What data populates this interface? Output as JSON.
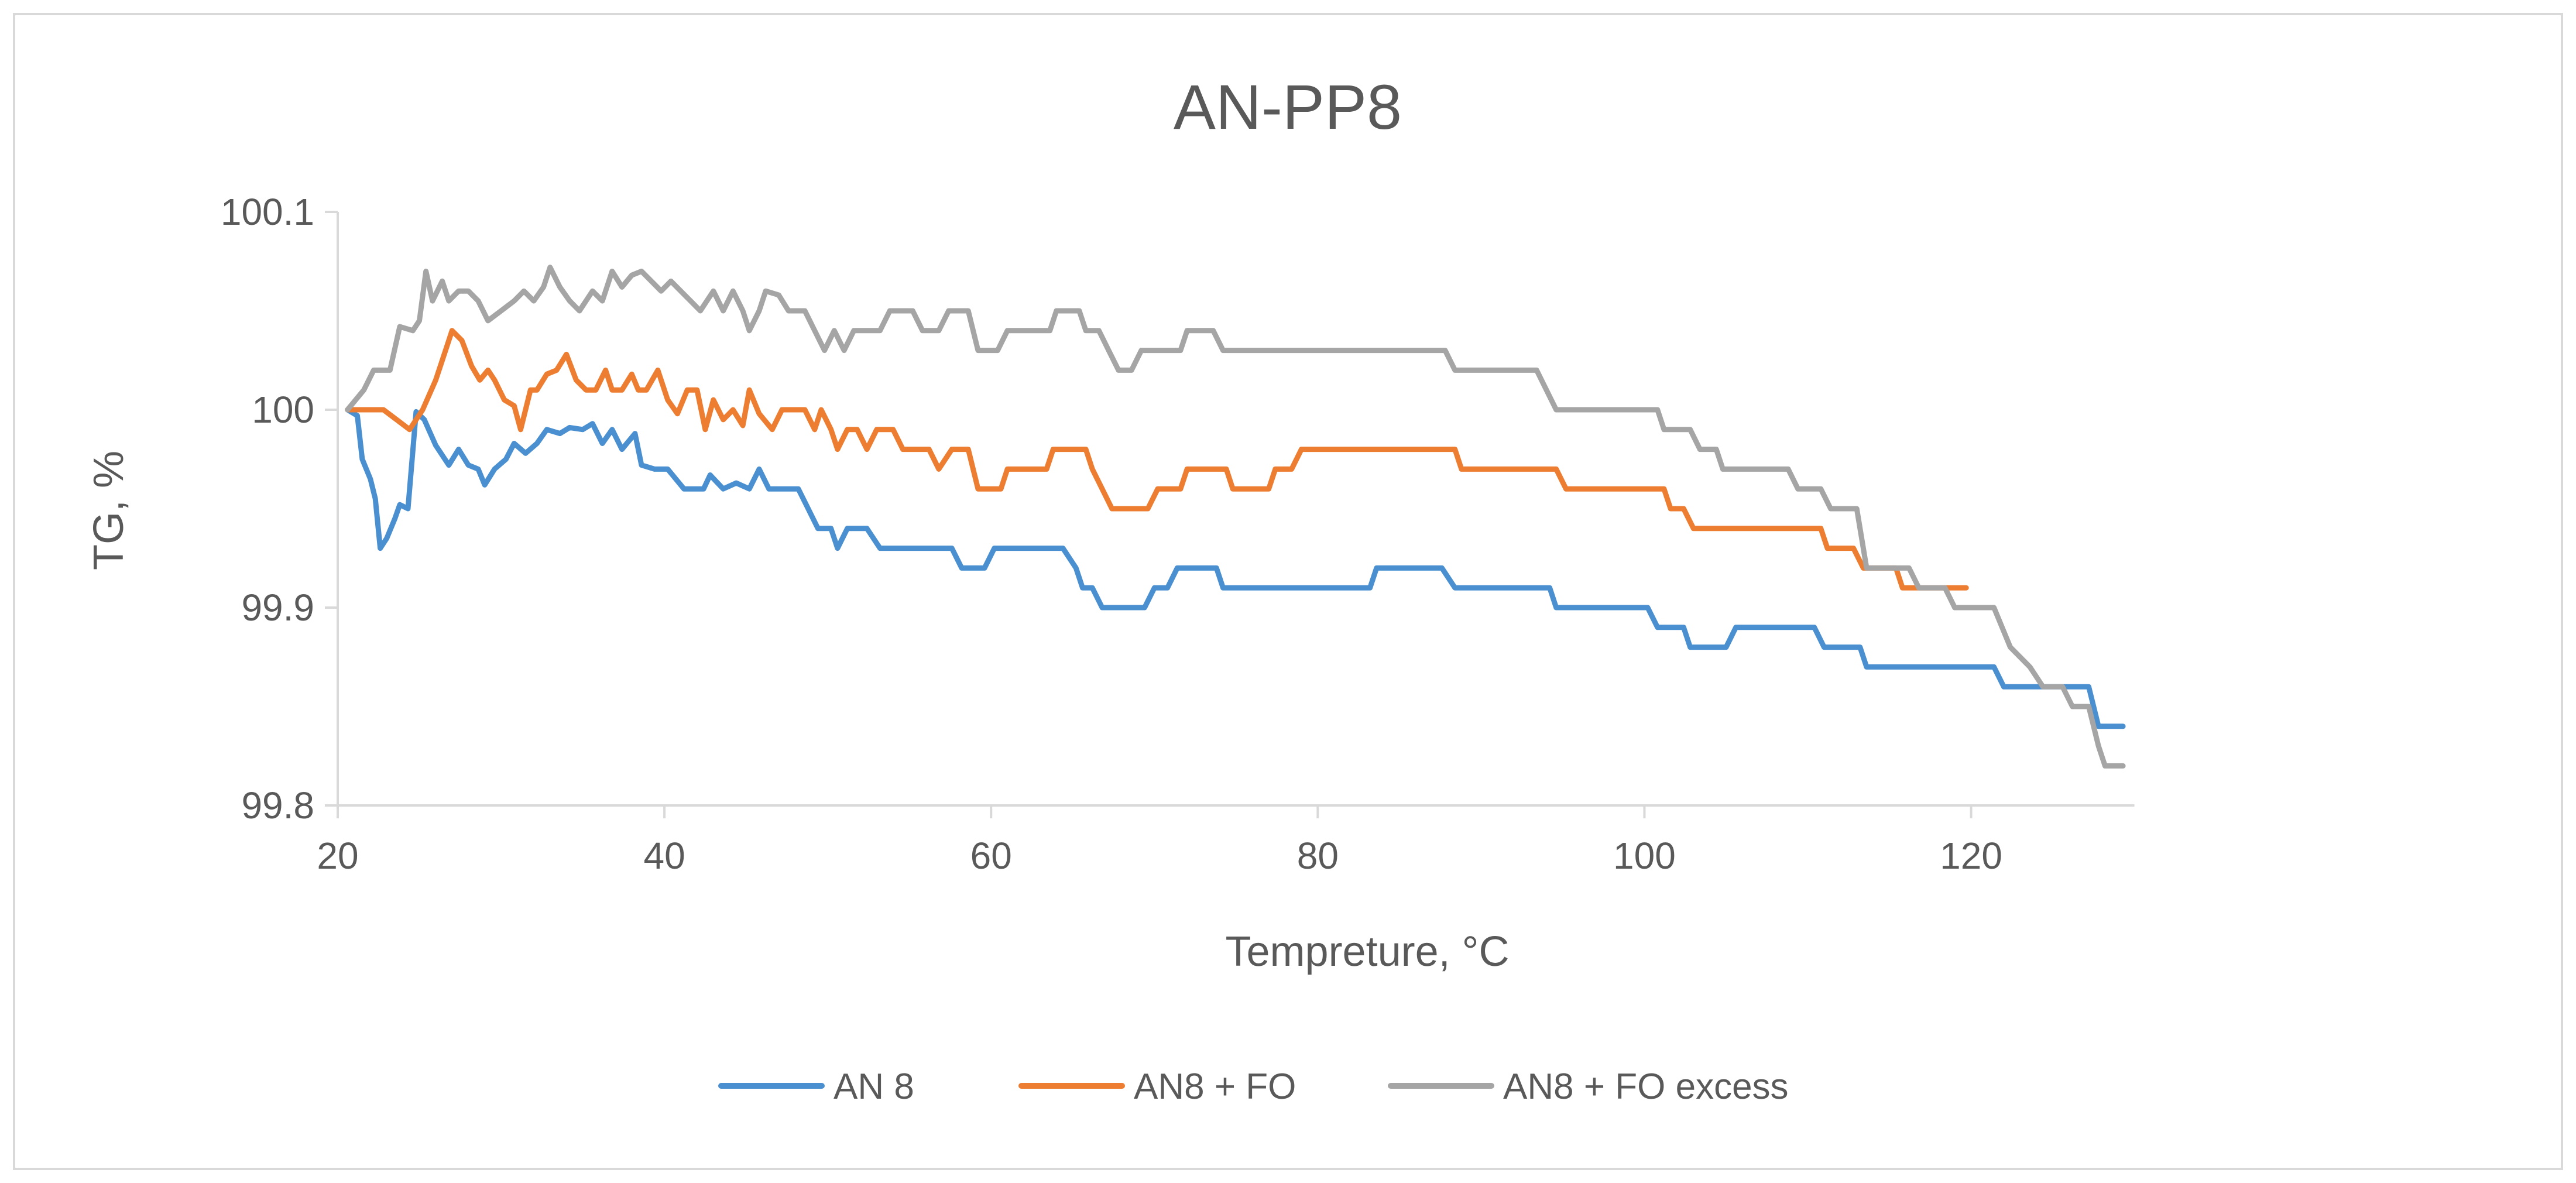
{
  "chart_data": {
    "type": "line",
    "title": "AN-PP8",
    "xlabel": "Tempreture, °C",
    "ylabel": "TG, %",
    "xlim": [
      20,
      130
    ],
    "ylim": [
      99.8,
      100.1
    ],
    "x_ticks": [
      20,
      40,
      60,
      80,
      100,
      120
    ],
    "x_tick_labels": [
      "20",
      "40",
      "60",
      "80",
      "100",
      "120"
    ],
    "y_ticks": [
      99.8,
      99.9,
      100,
      100.1
    ],
    "y_tick_labels": [
      "99.8",
      "99.9",
      "100",
      "100.1"
    ],
    "grid": false,
    "legend_position": "bottom",
    "series": [
      {
        "name": "AN 8",
        "color": "#4a90d0",
        "points": [
          [
            20.6,
            100.0
          ],
          [
            21.2,
            99.997
          ],
          [
            21.5,
            99.975
          ],
          [
            22.0,
            99.965
          ],
          [
            22.3,
            99.955
          ],
          [
            22.6,
            99.93
          ],
          [
            23.0,
            99.935
          ],
          [
            23.5,
            99.945
          ],
          [
            23.8,
            99.952
          ],
          [
            24.3,
            99.95
          ],
          [
            24.8,
            99.999
          ],
          [
            25.3,
            99.995
          ],
          [
            26.0,
            99.982
          ],
          [
            26.8,
            99.972
          ],
          [
            27.4,
            99.98
          ],
          [
            28.0,
            99.972
          ],
          [
            28.6,
            99.97
          ],
          [
            29.0,
            99.962
          ],
          [
            29.6,
            99.97
          ],
          [
            30.3,
            99.975
          ],
          [
            30.8,
            99.983
          ],
          [
            31.5,
            99.978
          ],
          [
            32.2,
            99.983
          ],
          [
            32.8,
            99.99
          ],
          [
            33.6,
            99.988
          ],
          [
            34.2,
            99.991
          ],
          [
            35.0,
            99.99
          ],
          [
            35.6,
            99.993
          ],
          [
            36.2,
            99.983
          ],
          [
            36.8,
            99.99
          ],
          [
            37.4,
            99.98
          ],
          [
            38.2,
            99.988
          ],
          [
            38.6,
            99.972
          ],
          [
            39.4,
            99.97
          ],
          [
            40.2,
            99.97
          ],
          [
            41.2,
            99.96
          ],
          [
            42.4,
            99.96
          ],
          [
            42.8,
            99.967
          ],
          [
            43.6,
            99.96
          ],
          [
            44.4,
            99.963
          ],
          [
            45.2,
            99.96
          ],
          [
            45.8,
            99.97
          ],
          [
            46.4,
            99.96
          ],
          [
            48.2,
            99.96
          ],
          [
            48.8,
            99.95
          ],
          [
            49.4,
            99.94
          ],
          [
            50.2,
            99.94
          ],
          [
            50.6,
            99.93
          ],
          [
            51.2,
            99.94
          ],
          [
            52.4,
            99.94
          ],
          [
            53.2,
            99.93
          ],
          [
            57.6,
            99.93
          ],
          [
            58.2,
            99.92
          ],
          [
            59.6,
            99.92
          ],
          [
            60.2,
            99.93
          ],
          [
            64.4,
            99.93
          ],
          [
            65.2,
            99.92
          ],
          [
            65.6,
            99.91
          ],
          [
            66.2,
            99.91
          ],
          [
            66.8,
            99.9
          ],
          [
            69.4,
            99.9
          ],
          [
            70.0,
            99.91
          ],
          [
            70.8,
            99.91
          ],
          [
            71.4,
            99.92
          ],
          [
            73.8,
            99.92
          ],
          [
            74.2,
            99.91
          ],
          [
            83.2,
            99.91
          ],
          [
            83.6,
            99.92
          ],
          [
            87.6,
            99.92
          ],
          [
            88.4,
            99.91
          ],
          [
            94.2,
            99.91
          ],
          [
            94.6,
            99.9
          ],
          [
            100.2,
            99.9
          ],
          [
            100.8,
            99.89
          ],
          [
            102.4,
            99.89
          ],
          [
            102.8,
            99.88
          ],
          [
            105.0,
            99.88
          ],
          [
            105.6,
            99.89
          ],
          [
            110.4,
            99.89
          ],
          [
            111.0,
            99.88
          ],
          [
            113.2,
            99.88
          ],
          [
            113.6,
            99.87
          ],
          [
            121.4,
            99.87
          ],
          [
            122.0,
            99.86
          ],
          [
            127.2,
            99.86
          ],
          [
            127.8,
            99.84
          ],
          [
            129.3,
            99.84
          ]
        ]
      },
      {
        "name": "AN8 + FO",
        "color": "#ed7d31",
        "points": [
          [
            20.6,
            100.0
          ],
          [
            22.8,
            100.0
          ],
          [
            23.6,
            99.995
          ],
          [
            24.4,
            99.99
          ],
          [
            25.2,
            100.0
          ],
          [
            26.0,
            100.015
          ],
          [
            26.6,
            100.03
          ],
          [
            27.0,
            100.04
          ],
          [
            27.6,
            100.035
          ],
          [
            28.2,
            100.022
          ],
          [
            28.7,
            100.015
          ],
          [
            29.2,
            100.02
          ],
          [
            29.6,
            100.015
          ],
          [
            30.2,
            100.005
          ],
          [
            30.8,
            100.002
          ],
          [
            31.2,
            99.99
          ],
          [
            31.8,
            100.01
          ],
          [
            32.2,
            100.01
          ],
          [
            32.8,
            100.018
          ],
          [
            33.4,
            100.02
          ],
          [
            34.0,
            100.028
          ],
          [
            34.6,
            100.015
          ],
          [
            35.2,
            100.01
          ],
          [
            35.8,
            100.01
          ],
          [
            36.4,
            100.02
          ],
          [
            36.8,
            100.01
          ],
          [
            37.4,
            100.01
          ],
          [
            38.0,
            100.018
          ],
          [
            38.4,
            100.01
          ],
          [
            38.9,
            100.01
          ],
          [
            39.6,
            100.02
          ],
          [
            40.2,
            100.005
          ],
          [
            40.8,
            99.998
          ],
          [
            41.4,
            100.01
          ],
          [
            42.0,
            100.01
          ],
          [
            42.5,
            99.99
          ],
          [
            43.0,
            100.005
          ],
          [
            43.6,
            99.995
          ],
          [
            44.2,
            100.0
          ],
          [
            44.8,
            99.992
          ],
          [
            45.2,
            100.01
          ],
          [
            45.8,
            99.998
          ],
          [
            46.6,
            99.99
          ],
          [
            47.2,
            100.0
          ],
          [
            48.6,
            100.0
          ],
          [
            49.2,
            99.99
          ],
          [
            49.6,
            100.0
          ],
          [
            50.2,
            99.99
          ],
          [
            50.6,
            99.98
          ],
          [
            51.2,
            99.99
          ],
          [
            51.8,
            99.99
          ],
          [
            52.4,
            99.98
          ],
          [
            53.0,
            99.99
          ],
          [
            54.0,
            99.99
          ],
          [
            54.6,
            99.98
          ],
          [
            56.2,
            99.98
          ],
          [
            56.8,
            99.97
          ],
          [
            57.6,
            99.98
          ],
          [
            58.6,
            99.98
          ],
          [
            59.2,
            99.96
          ],
          [
            60.6,
            99.96
          ],
          [
            61.0,
            99.97
          ],
          [
            63.4,
            99.97
          ],
          [
            63.8,
            99.98
          ],
          [
            65.8,
            99.98
          ],
          [
            66.2,
            99.97
          ],
          [
            66.8,
            99.96
          ],
          [
            67.4,
            99.95
          ],
          [
            69.6,
            99.95
          ],
          [
            70.2,
            99.96
          ],
          [
            71.6,
            99.96
          ],
          [
            72.0,
            99.97
          ],
          [
            74.4,
            99.97
          ],
          [
            74.8,
            99.96
          ],
          [
            77.0,
            99.96
          ],
          [
            77.4,
            99.97
          ],
          [
            78.4,
            99.97
          ],
          [
            79.0,
            99.98
          ],
          [
            88.4,
            99.98
          ],
          [
            88.8,
            99.97
          ],
          [
            94.6,
            99.97
          ],
          [
            95.2,
            99.96
          ],
          [
            101.2,
            99.96
          ],
          [
            101.6,
            99.95
          ],
          [
            102.4,
            99.95
          ],
          [
            103.0,
            99.94
          ],
          [
            110.8,
            99.94
          ],
          [
            111.2,
            99.93
          ],
          [
            112.8,
            99.93
          ],
          [
            113.4,
            99.92
          ],
          [
            115.4,
            99.92
          ],
          [
            115.8,
            99.91
          ],
          [
            119.7,
            99.91
          ]
        ]
      },
      {
        "name": "AN8 + FO excess",
        "color": "#a5a5a5",
        "points": [
          [
            20.6,
            100.0
          ],
          [
            21.6,
            100.01
          ],
          [
            22.2,
            100.02
          ],
          [
            23.2,
            100.02
          ],
          [
            23.8,
            100.042
          ],
          [
            24.6,
            100.04
          ],
          [
            25.0,
            100.045
          ],
          [
            25.4,
            100.07
          ],
          [
            25.8,
            100.055
          ],
          [
            26.4,
            100.065
          ],
          [
            26.8,
            100.055
          ],
          [
            27.4,
            100.06
          ],
          [
            28.0,
            100.06
          ],
          [
            28.6,
            100.055
          ],
          [
            29.2,
            100.045
          ],
          [
            30.0,
            100.05
          ],
          [
            30.8,
            100.055
          ],
          [
            31.4,
            100.06
          ],
          [
            32.0,
            100.055
          ],
          [
            32.6,
            100.062
          ],
          [
            33.0,
            100.072
          ],
          [
            33.6,
            100.062
          ],
          [
            34.2,
            100.055
          ],
          [
            34.8,
            100.05
          ],
          [
            35.6,
            100.06
          ],
          [
            36.2,
            100.055
          ],
          [
            36.8,
            100.07
          ],
          [
            37.4,
            100.062
          ],
          [
            38.0,
            100.068
          ],
          [
            38.6,
            100.07
          ],
          [
            39.2,
            100.065
          ],
          [
            39.8,
            100.06
          ],
          [
            40.4,
            100.065
          ],
          [
            41.0,
            100.06
          ],
          [
            41.6,
            100.055
          ],
          [
            42.2,
            100.05
          ],
          [
            43.0,
            100.06
          ],
          [
            43.6,
            100.05
          ],
          [
            44.2,
            100.06
          ],
          [
            44.8,
            100.05
          ],
          [
            45.2,
            100.04
          ],
          [
            45.8,
            100.05
          ],
          [
            46.2,
            100.06
          ],
          [
            47.0,
            100.058
          ],
          [
            47.6,
            100.05
          ],
          [
            48.6,
            100.05
          ],
          [
            49.2,
            100.04
          ],
          [
            49.8,
            100.03
          ],
          [
            50.4,
            100.04
          ],
          [
            51.0,
            100.03
          ],
          [
            51.6,
            100.04
          ],
          [
            53.2,
            100.04
          ],
          [
            53.8,
            100.05
          ],
          [
            55.2,
            100.05
          ],
          [
            55.8,
            100.04
          ],
          [
            56.8,
            100.04
          ],
          [
            57.4,
            100.05
          ],
          [
            58.6,
            100.05
          ],
          [
            59.2,
            100.03
          ],
          [
            60.4,
            100.03
          ],
          [
            61.0,
            100.04
          ],
          [
            63.6,
            100.04
          ],
          [
            64.0,
            100.05
          ],
          [
            65.4,
            100.05
          ],
          [
            65.8,
            100.04
          ],
          [
            66.6,
            100.04
          ],
          [
            67.2,
            100.03
          ],
          [
            67.8,
            100.02
          ],
          [
            68.6,
            100.02
          ],
          [
            69.2,
            100.03
          ],
          [
            71.6,
            100.03
          ],
          [
            72.0,
            100.04
          ],
          [
            73.6,
            100.04
          ],
          [
            74.2,
            100.03
          ],
          [
            87.8,
            100.03
          ],
          [
            88.4,
            100.02
          ],
          [
            93.4,
            100.02
          ],
          [
            94.0,
            100.01
          ],
          [
            94.6,
            100.0
          ],
          [
            100.8,
            100.0
          ],
          [
            101.2,
            99.99
          ],
          [
            102.8,
            99.99
          ],
          [
            103.4,
            99.98
          ],
          [
            104.4,
            99.98
          ],
          [
            104.8,
            99.97
          ],
          [
            108.8,
            99.97
          ],
          [
            109.4,
            99.96
          ],
          [
            110.8,
            99.96
          ],
          [
            111.4,
            99.95
          ],
          [
            113.0,
            99.95
          ],
          [
            113.6,
            99.92
          ],
          [
            116.2,
            99.92
          ],
          [
            116.8,
            99.91
          ],
          [
            118.4,
            99.91
          ],
          [
            119.0,
            99.9
          ],
          [
            121.4,
            99.9
          ],
          [
            122.4,
            99.88
          ],
          [
            123.6,
            99.87
          ],
          [
            124.4,
            99.86
          ],
          [
            125.6,
            99.86
          ],
          [
            126.2,
            99.85
          ],
          [
            127.2,
            99.85
          ],
          [
            127.8,
            99.83
          ],
          [
            128.2,
            99.82
          ],
          [
            129.3,
            99.82
          ]
        ]
      }
    ]
  }
}
